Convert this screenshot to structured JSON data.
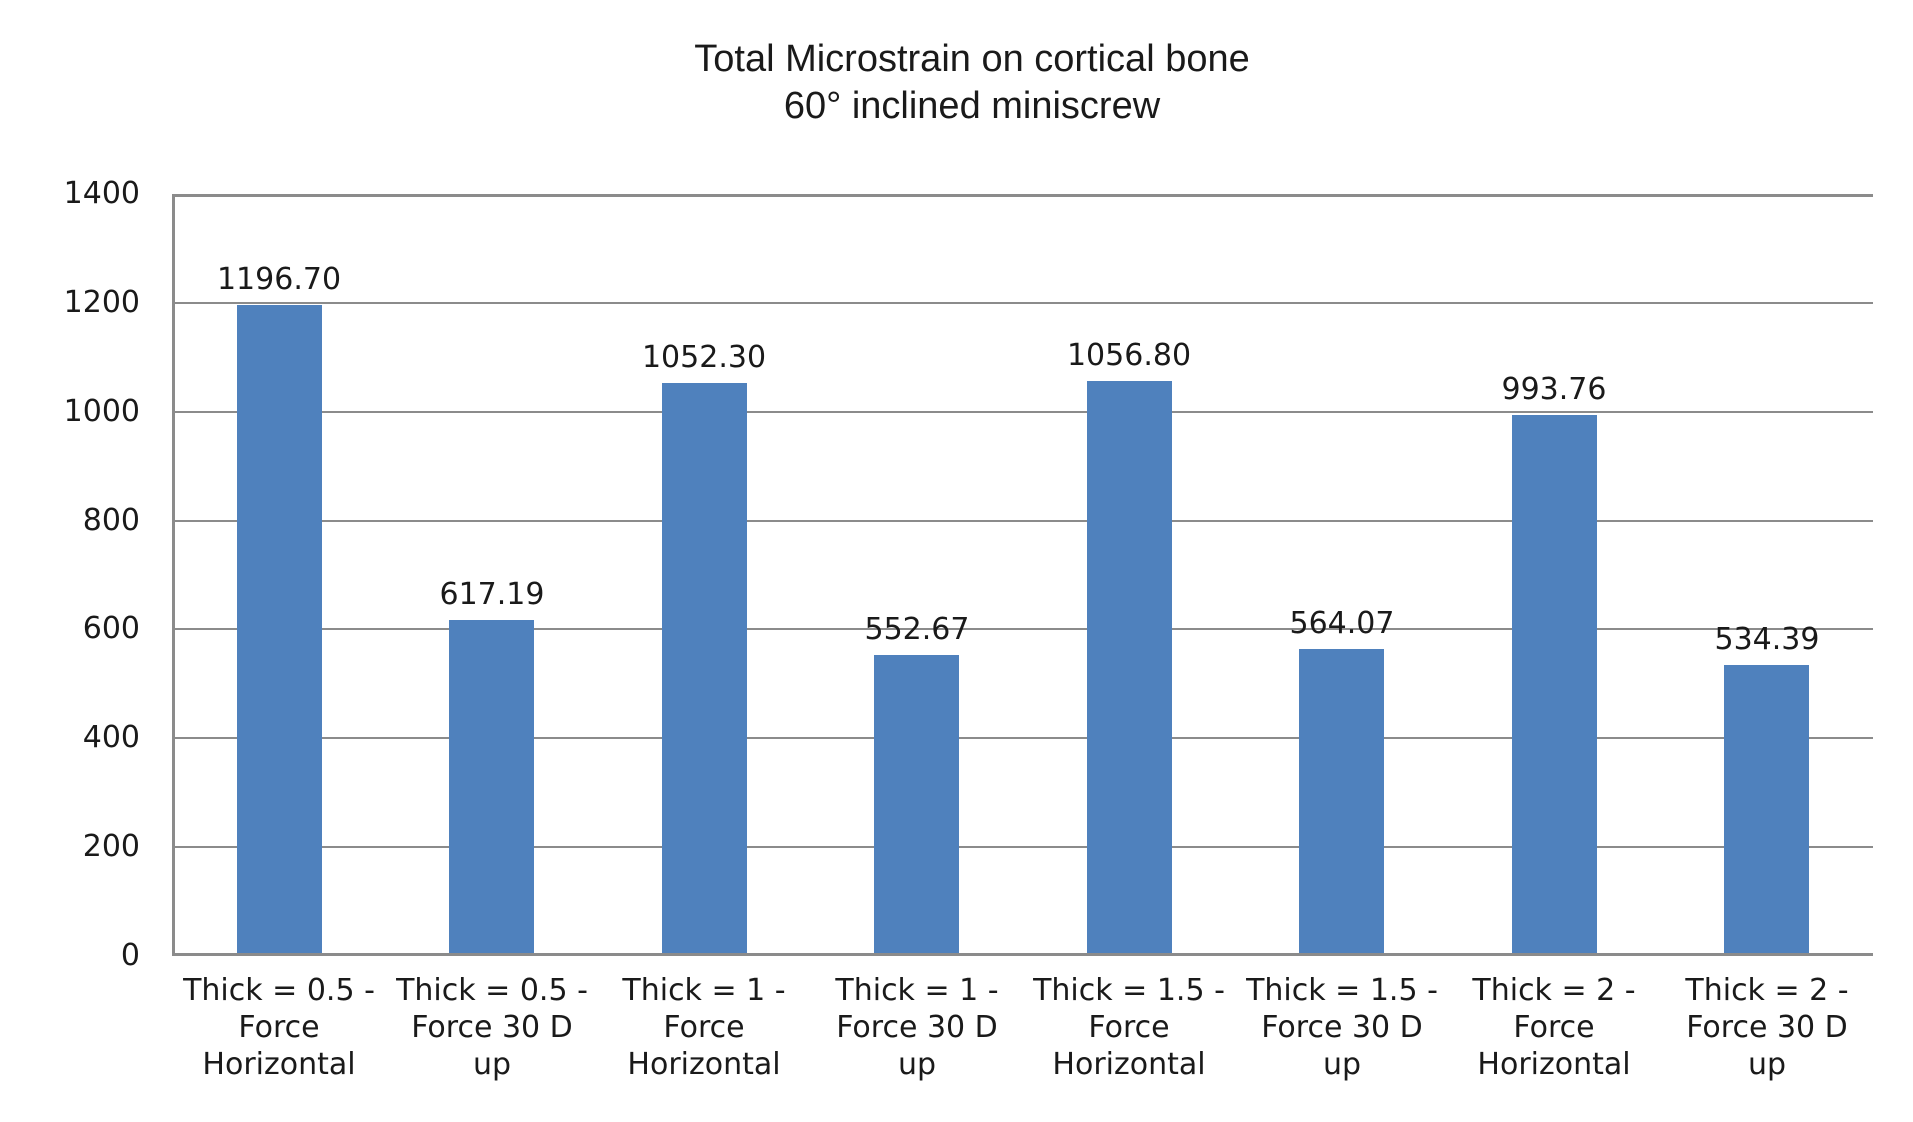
{
  "chart_data": {
    "type": "bar",
    "title": "Total Microstrain on cortical bone",
    "subtitle": "60° inclined miniscrew",
    "xlabel": "",
    "ylabel": "",
    "legend": "none",
    "grid": "horizontal",
    "ylim": [
      0,
      1400
    ],
    "ytick_step": 200,
    "yticks": [
      "0",
      "200",
      "400",
      "600",
      "800",
      "1000",
      "1200",
      "1400"
    ],
    "categories": [
      "Thick = 0.5 -\nForce\nHorizontal",
      "Thick = 0.5 -\nForce 30 D\nup",
      "Thick = 1 -\nForce\nHorizontal",
      "Thick = 1 -\nForce 30 D\nup",
      "Thick = 1.5 -\nForce\nHorizontal",
      "Thick = 1.5 -\nForce 30 D\nup",
      "Thick = 2 -\nForce\nHorizontal",
      "Thick = 2 -\nForce 30 D\nup"
    ],
    "values": [
      1196.7,
      617.19,
      1052.3,
      552.67,
      1056.8,
      564.07,
      993.76,
      534.39
    ],
    "value_labels": [
      "1196.70",
      "617.19",
      "1052.30",
      "552.67",
      "1056.80",
      "564.07",
      "993.76",
      "534.39"
    ],
    "colors": {
      "bar": "#4F81BD",
      "gridline": "#8B8B8B",
      "text": "#1A1A1A",
      "background": "#FFFFFF"
    }
  }
}
